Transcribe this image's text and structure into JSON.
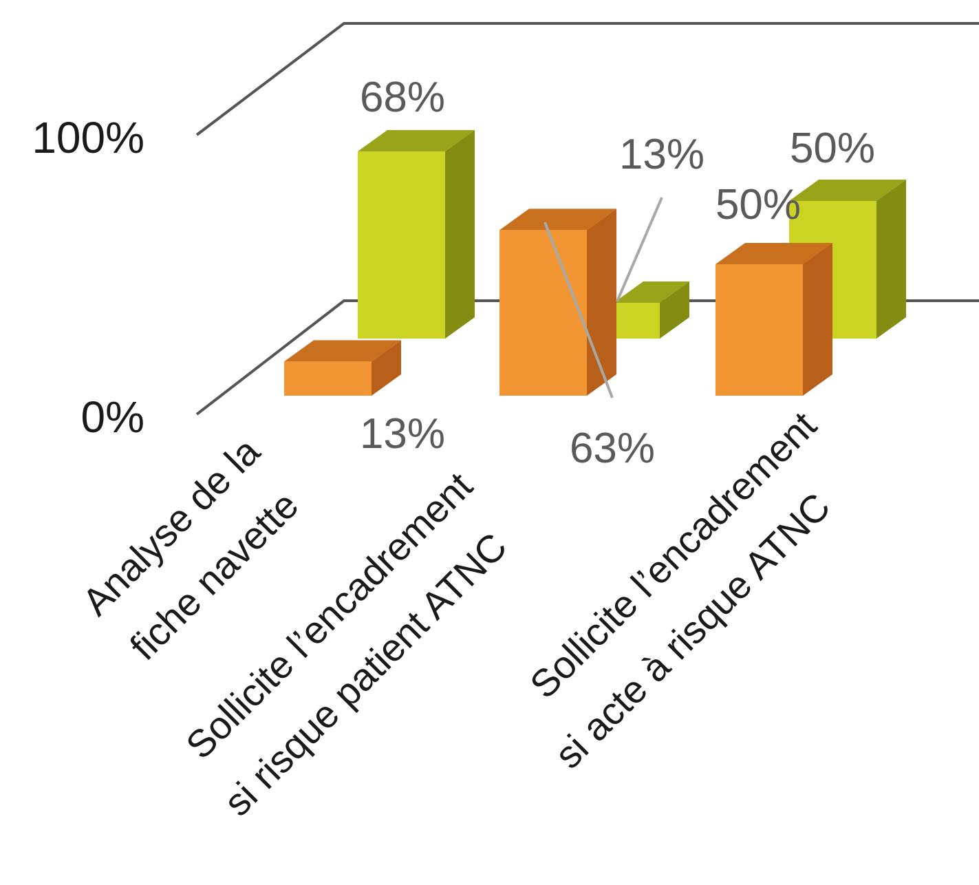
{
  "colors": {
    "series_a_front": "#f29634",
    "series_a_top": "#c9701f",
    "series_a_side": "#b8601a",
    "series_b_front": "#cbd423",
    "series_b_top": "#9aa419",
    "series_b_side": "#848d12",
    "axis": "#555555",
    "data_label": "#5a5a5a",
    "leader_line": "#a8a8a8"
  },
  "chart_data": {
    "type": "bar",
    "three_d": true,
    "categories": [
      [
        "Analyse de la",
        "fiche navette"
      ],
      [
        "Sollicite l’encadrement",
        "si risque patient ATNC"
      ],
      [
        "Sollicite l’encadrement",
        "si acte à risque ATNC"
      ]
    ],
    "series": [
      {
        "color": "series_a",
        "values": [
          13,
          63,
          50
        ],
        "labels": [
          "13%",
          "63%",
          "50%"
        ]
      },
      {
        "color": "series_b",
        "values": [
          68,
          13,
          50
        ],
        "labels": [
          "68%",
          "13%",
          "50%"
        ]
      }
    ],
    "ylim": [
      0,
      100
    ],
    "y_ticks": [
      "0%",
      "100%"
    ],
    "grid": false,
    "legend": "none"
  }
}
